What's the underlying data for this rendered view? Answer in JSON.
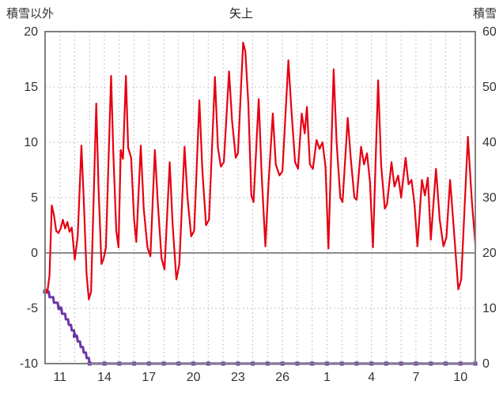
{
  "chart_data": {
    "type": "line",
    "title": "矢上",
    "left_axis_title": "積雪以外",
    "right_axis_title": "積雪",
    "x_domain": [
      0,
      29
    ],
    "x_ticks": {
      "positions": [
        1,
        4,
        7,
        10,
        13,
        16,
        19,
        22,
        25,
        28
      ],
      "labels": [
        "11",
        "14",
        "17",
        "20",
        "23",
        "26",
        "1",
        "4",
        "7",
        "10"
      ]
    },
    "left_axis": {
      "min": -10,
      "max": 20,
      "ticks": [
        20,
        15,
        10,
        5,
        0,
        -5,
        -10
      ]
    },
    "right_axis": {
      "min": 0,
      "max": 60,
      "ticks": [
        60,
        50,
        40,
        30,
        20,
        10,
        0
      ]
    },
    "grid": {
      "vertical_every_days": 1,
      "horizontal_dashed_at": [
        15,
        10,
        5,
        -5
      ],
      "zero_line": 0
    },
    "colors": {
      "temperature": "#e60012",
      "snow": "#6a35a8",
      "frame": "#808080",
      "grid": "#c4c4c4",
      "zero": "#666666"
    },
    "series": [
      {
        "name": "積雪以外",
        "axis": "left",
        "color": "#e60012",
        "points": [
          [
            0.0,
            -3.2
          ],
          [
            0.15,
            -3.6
          ],
          [
            0.3,
            -2.0
          ],
          [
            0.45,
            4.3
          ],
          [
            0.6,
            3.4
          ],
          [
            0.75,
            2.0
          ],
          [
            0.9,
            1.8
          ],
          [
            1.05,
            2.2
          ],
          [
            1.2,
            3.0
          ],
          [
            1.35,
            2.2
          ],
          [
            1.5,
            2.8
          ],
          [
            1.65,
            1.9
          ],
          [
            1.8,
            2.3
          ],
          [
            2.0,
            -0.6
          ],
          [
            2.2,
            1.5
          ],
          [
            2.45,
            9.7
          ],
          [
            2.6,
            5.0
          ],
          [
            2.8,
            -2.0
          ],
          [
            2.95,
            -4.2
          ],
          [
            3.1,
            -3.5
          ],
          [
            3.45,
            13.5
          ],
          [
            3.6,
            6.0
          ],
          [
            3.8,
            -1.0
          ],
          [
            3.95,
            -0.5
          ],
          [
            4.1,
            0.5
          ],
          [
            4.45,
            16.0
          ],
          [
            4.6,
            9.0
          ],
          [
            4.8,
            2.0
          ],
          [
            4.95,
            0.5
          ],
          [
            5.1,
            9.3
          ],
          [
            5.25,
            8.5
          ],
          [
            5.45,
            16.0
          ],
          [
            5.6,
            9.5
          ],
          [
            5.8,
            8.6
          ],
          [
            6.0,
            3.0
          ],
          [
            6.15,
            1.0
          ],
          [
            6.45,
            9.7
          ],
          [
            6.65,
            4.0
          ],
          [
            6.9,
            0.5
          ],
          [
            7.1,
            -0.3
          ],
          [
            7.4,
            9.3
          ],
          [
            7.6,
            4.5
          ],
          [
            7.85,
            -0.5
          ],
          [
            8.05,
            -1.5
          ],
          [
            8.4,
            8.2
          ],
          [
            8.6,
            2.5
          ],
          [
            8.85,
            -2.4
          ],
          [
            9.05,
            -1.0
          ],
          [
            9.4,
            9.6
          ],
          [
            9.6,
            5.0
          ],
          [
            9.85,
            1.5
          ],
          [
            10.05,
            2.0
          ],
          [
            10.4,
            13.8
          ],
          [
            10.6,
            7.5
          ],
          [
            10.85,
            2.5
          ],
          [
            11.05,
            3.0
          ],
          [
            11.45,
            15.9
          ],
          [
            11.65,
            9.5
          ],
          [
            11.85,
            7.8
          ],
          [
            12.05,
            8.2
          ],
          [
            12.4,
            16.4
          ],
          [
            12.6,
            12.0
          ],
          [
            12.85,
            8.6
          ],
          [
            13.0,
            9.0
          ],
          [
            13.35,
            19.0
          ],
          [
            13.5,
            18.2
          ],
          [
            13.7,
            13.5
          ],
          [
            13.9,
            5.2
          ],
          [
            14.05,
            4.6
          ],
          [
            14.4,
            13.9
          ],
          [
            14.6,
            7.0
          ],
          [
            14.85,
            0.6
          ],
          [
            15.05,
            6.0
          ],
          [
            15.35,
            12.6
          ],
          [
            15.55,
            8.0
          ],
          [
            15.8,
            7.0
          ],
          [
            16.0,
            7.4
          ],
          [
            16.4,
            17.4
          ],
          [
            16.6,
            13.0
          ],
          [
            16.85,
            8.2
          ],
          [
            17.05,
            7.6
          ],
          [
            17.3,
            12.6
          ],
          [
            17.5,
            10.8
          ],
          [
            17.65,
            13.2
          ],
          [
            17.85,
            8.0
          ],
          [
            18.05,
            7.6
          ],
          [
            18.3,
            10.2
          ],
          [
            18.5,
            9.4
          ],
          [
            18.7,
            10.0
          ],
          [
            18.9,
            7.8
          ],
          [
            19.1,
            0.4
          ],
          [
            19.45,
            16.6
          ],
          [
            19.65,
            10.0
          ],
          [
            19.9,
            5.0
          ],
          [
            20.05,
            4.6
          ],
          [
            20.4,
            12.2
          ],
          [
            20.6,
            8.6
          ],
          [
            20.85,
            5.0
          ],
          [
            21.0,
            4.8
          ],
          [
            21.3,
            9.6
          ],
          [
            21.5,
            8.0
          ],
          [
            21.7,
            9.0
          ],
          [
            21.9,
            6.4
          ],
          [
            22.1,
            0.5
          ],
          [
            22.45,
            15.6
          ],
          [
            22.65,
            8.0
          ],
          [
            22.9,
            4.0
          ],
          [
            23.05,
            4.4
          ],
          [
            23.35,
            8.2
          ],
          [
            23.55,
            6.0
          ],
          [
            23.8,
            7.0
          ],
          [
            24.0,
            5.0
          ],
          [
            24.3,
            8.6
          ],
          [
            24.5,
            6.2
          ],
          [
            24.7,
            6.6
          ],
          [
            24.9,
            4.4
          ],
          [
            25.1,
            0.6
          ],
          [
            25.4,
            6.6
          ],
          [
            25.6,
            5.2
          ],
          [
            25.8,
            6.8
          ],
          [
            26.0,
            1.2
          ],
          [
            26.35,
            7.6
          ],
          [
            26.6,
            3.0
          ],
          [
            26.85,
            0.6
          ],
          [
            27.05,
            1.4
          ],
          [
            27.3,
            6.6
          ],
          [
            27.55,
            2.2
          ],
          [
            27.85,
            -3.3
          ],
          [
            28.05,
            -2.4
          ],
          [
            28.5,
            10.5
          ],
          [
            28.75,
            5.0
          ],
          [
            29.0,
            0.8
          ]
        ]
      },
      {
        "name": "積雪",
        "axis": "right",
        "color": "#6a35a8",
        "points": [
          [
            0.0,
            13
          ],
          [
            0.25,
            13
          ],
          [
            0.3,
            12
          ],
          [
            0.55,
            12
          ],
          [
            0.6,
            11
          ],
          [
            0.85,
            11
          ],
          [
            0.9,
            10
          ],
          [
            1.1,
            10
          ],
          [
            1.15,
            9
          ],
          [
            1.35,
            9
          ],
          [
            1.4,
            8
          ],
          [
            1.55,
            8
          ],
          [
            1.6,
            7
          ],
          [
            1.75,
            7
          ],
          [
            1.8,
            6
          ],
          [
            1.95,
            6
          ],
          [
            2.0,
            5
          ],
          [
            2.15,
            5
          ],
          [
            2.2,
            4
          ],
          [
            2.35,
            4
          ],
          [
            2.4,
            3
          ],
          [
            2.55,
            3
          ],
          [
            2.6,
            2
          ],
          [
            2.75,
            2
          ],
          [
            2.8,
            1
          ],
          [
            2.95,
            1
          ],
          [
            3.0,
            0
          ],
          [
            29.0,
            0
          ]
        ]
      }
    ]
  }
}
